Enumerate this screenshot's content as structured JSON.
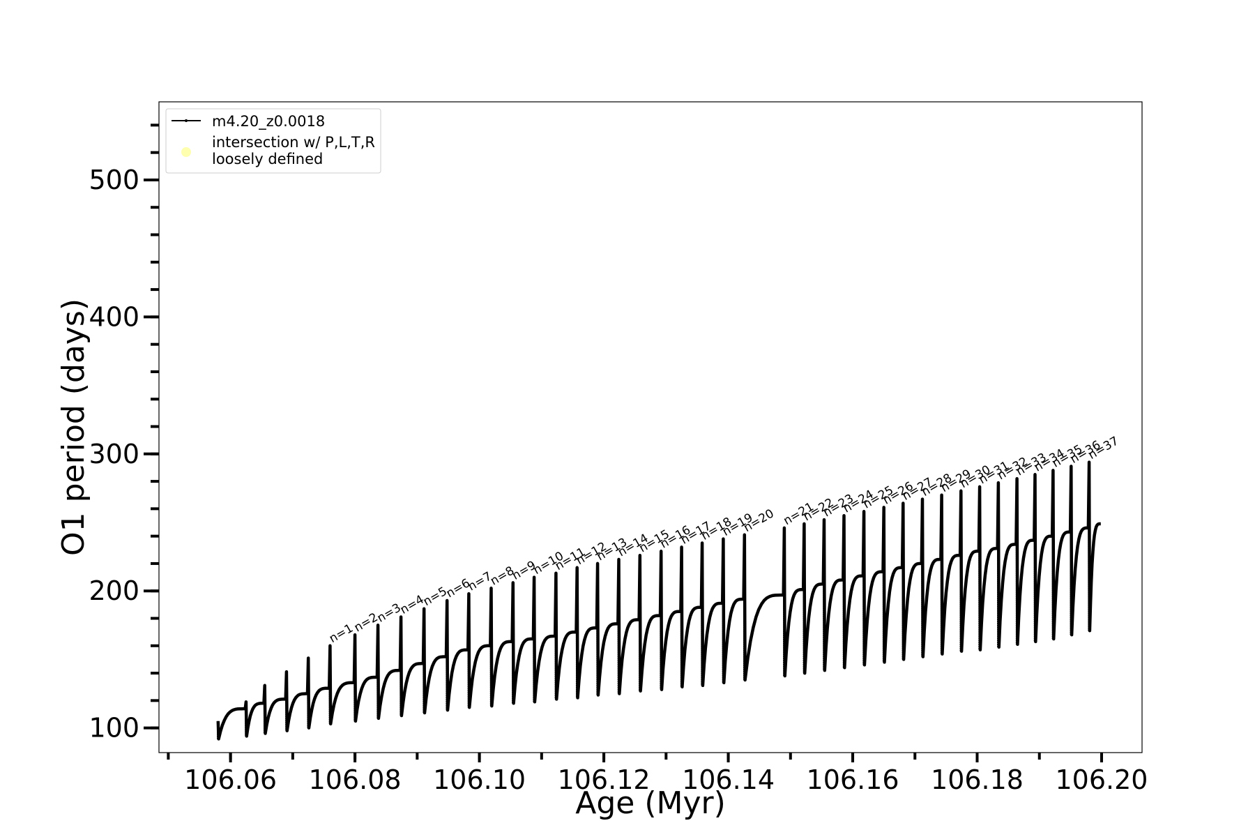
{
  "chart_data": {
    "type": "line",
    "title": "",
    "xlabel": "Age (Myr)",
    "ylabel": "O1 period (days)",
    "xlim": [
      106.0485,
      106.2065
    ],
    "ylim": [
      82,
      557
    ],
    "x_ticks": [
      106.06,
      106.08,
      106.1,
      106.12,
      106.14,
      106.16,
      106.18,
      106.2
    ],
    "x_tick_labels": [
      "106.06",
      "106.08",
      "106.10",
      "106.12",
      "106.14",
      "106.16",
      "106.18",
      "106.20"
    ],
    "y_ticks": [
      100,
      200,
      300,
      400,
      500
    ],
    "y_tick_labels": [
      "100",
      "200",
      "300",
      "400",
      "500"
    ],
    "grid": false,
    "legend": {
      "placement": "top-left",
      "entries": [
        {
          "label": "m4.20_z0.0018",
          "marker": "line",
          "color": "#000000"
        },
        {
          "label": "intersection w/ P,L,T,R\nloosely defined",
          "marker": "circle",
          "color": "#ffffb0"
        }
      ]
    },
    "series": [
      {
        "name": "m4.20_z0.0018",
        "color": "#000000",
        "x_start": 106.0552,
        "x_end": 106.2,
        "end_value": 249,
        "spike_peaks": [
          105,
          119,
          131,
          141,
          151
        ],
        "loops": [
          {
            "x": 106.058,
            "bottom": 92,
            "top": 114
          },
          {
            "x": 106.0625,
            "bottom": 94,
            "top": 118
          },
          {
            "x": 106.0655,
            "bottom": 96,
            "top": 121
          },
          {
            "x": 106.069,
            "bottom": 98,
            "top": 125
          },
          {
            "x": 106.0725,
            "bottom": 100,
            "top": 129
          }
        ],
        "pulses": [
          {
            "n": 1,
            "x": 106.076,
            "peak": 160,
            "bottom": 103,
            "top": 133
          },
          {
            "n": 2,
            "x": 106.08,
            "peak": 168,
            "bottom": 105,
            "top": 137
          },
          {
            "n": 3,
            "x": 106.0837,
            "peak": 175,
            "bottom": 107,
            "top": 142
          },
          {
            "n": 4,
            "x": 106.0874,
            "peak": 181,
            "bottom": 109,
            "top": 147
          },
          {
            "n": 5,
            "x": 106.0911,
            "peak": 187,
            "bottom": 111,
            "top": 152
          },
          {
            "n": 6,
            "x": 106.0948,
            "peak": 193,
            "bottom": 113,
            "top": 157
          },
          {
            "n": 7,
            "x": 106.0983,
            "peak": 198,
            "bottom": 115,
            "top": 160
          },
          {
            "n": 8,
            "x": 106.1019,
            "peak": 202,
            "bottom": 116,
            "top": 163
          },
          {
            "n": 9,
            "x": 106.1054,
            "peak": 206,
            "bottom": 118,
            "top": 165
          },
          {
            "n": 10,
            "x": 106.1088,
            "peak": 210,
            "bottom": 119,
            "top": 167
          },
          {
            "n": 11,
            "x": 106.1123,
            "peak": 213,
            "bottom": 121,
            "top": 170
          },
          {
            "n": 12,
            "x": 106.1157,
            "peak": 217,
            "bottom": 122,
            "top": 173
          },
          {
            "n": 13,
            "x": 106.119,
            "peak": 220,
            "bottom": 124,
            "top": 176
          },
          {
            "n": 14,
            "x": 106.1224,
            "peak": 223,
            "bottom": 125,
            "top": 179
          },
          {
            "n": 15,
            "x": 106.1258,
            "peak": 226,
            "bottom": 127,
            "top": 182
          },
          {
            "n": 16,
            "x": 106.1292,
            "peak": 229,
            "bottom": 128,
            "top": 185
          },
          {
            "n": 17,
            "x": 106.1325,
            "peak": 232,
            "bottom": 130,
            "top": 188
          },
          {
            "n": 18,
            "x": 106.1358,
            "peak": 235,
            "bottom": 131,
            "top": 191
          },
          {
            "n": 19,
            "x": 106.1392,
            "peak": 238,
            "bottom": 133,
            "top": 194
          },
          {
            "n": 20,
            "x": 106.1426,
            "peak": 241,
            "bottom": 135,
            "top": 197
          },
          {
            "n": 21,
            "x": 106.149,
            "peak": 246,
            "bottom": 138,
            "top": 201
          },
          {
            "n": 22,
            "x": 106.1522,
            "peak": 249,
            "bottom": 140,
            "top": 205
          },
          {
            "n": 23,
            "x": 106.1554,
            "peak": 252,
            "bottom": 142,
            "top": 208
          },
          {
            "n": 24,
            "x": 106.1586,
            "peak": 255,
            "bottom": 144,
            "top": 211
          },
          {
            "n": 25,
            "x": 106.1618,
            "peak": 258,
            "bottom": 146,
            "top": 214
          },
          {
            "n": 26,
            "x": 106.165,
            "peak": 261,
            "bottom": 148,
            "top": 217
          },
          {
            "n": 27,
            "x": 106.1681,
            "peak": 264,
            "bottom": 150,
            "top": 220
          },
          {
            "n": 28,
            "x": 106.1712,
            "peak": 267,
            "bottom": 152,
            "top": 223
          },
          {
            "n": 29,
            "x": 106.1743,
            "peak": 270,
            "bottom": 154,
            "top": 226
          },
          {
            "n": 30,
            "x": 106.1774,
            "peak": 273,
            "bottom": 156,
            "top": 229
          },
          {
            "n": 31,
            "x": 106.1804,
            "peak": 276,
            "bottom": 157,
            "top": 231
          },
          {
            "n": 32,
            "x": 106.1834,
            "peak": 279,
            "bottom": 159,
            "top": 234
          },
          {
            "n": 33,
            "x": 106.1864,
            "peak": 282,
            "bottom": 161,
            "top": 237
          },
          {
            "n": 34,
            "x": 106.1893,
            "peak": 285,
            "bottom": 163,
            "top": 240
          },
          {
            "n": 35,
            "x": 106.1922,
            "peak": 288,
            "bottom": 165,
            "top": 243
          },
          {
            "n": 36,
            "x": 106.1951,
            "peak": 291,
            "bottom": 168,
            "top": 246
          },
          {
            "n": 37,
            "x": 106.198,
            "peak": 294,
            "bottom": 171,
            "top": 248
          }
        ]
      }
    ]
  }
}
